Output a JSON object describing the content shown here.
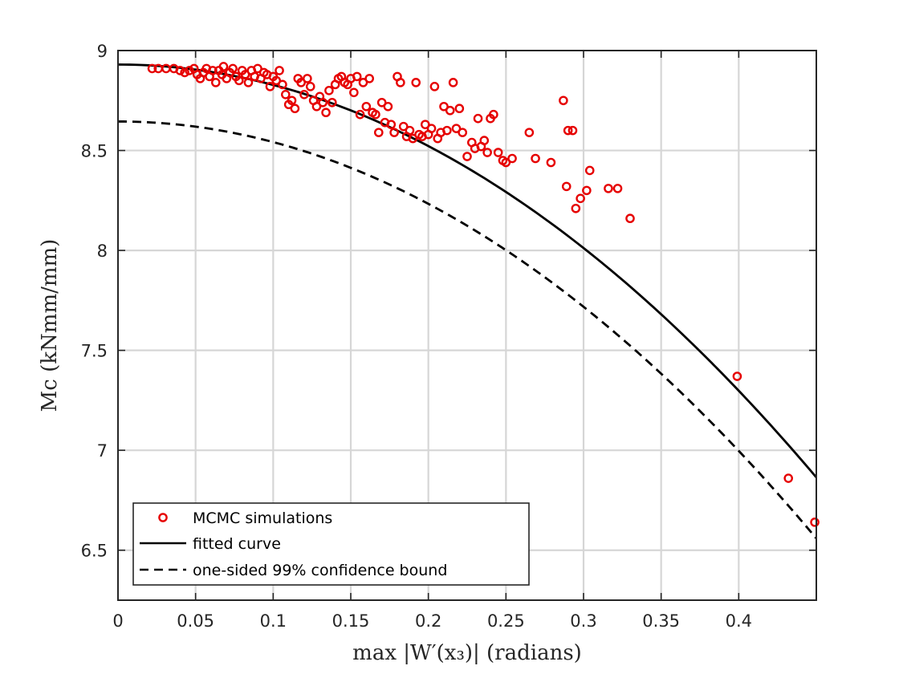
{
  "chart_data": {
    "type": "scatter",
    "title": "",
    "xlabel": "max |W′(x₃)| (radians)",
    "ylabel": "Mc (kNmm/mm)",
    "xlim": [
      0,
      0.45
    ],
    "ylim": [
      6.25,
      9.0
    ],
    "xticks": [
      0,
      0.05,
      0.1,
      0.15,
      0.2,
      0.25,
      0.3,
      0.35,
      0.4
    ],
    "xtick_labels": [
      "0",
      "0.05",
      "0.1",
      "0.15",
      "0.2",
      "0.25",
      "0.3",
      "0.35",
      "0.4"
    ],
    "yticks": [
      6.5,
      7,
      7.5,
      8,
      8.5,
      9
    ],
    "ytick_labels": [
      "6.5",
      "7",
      "7.5",
      "8",
      "8.5",
      "9"
    ],
    "grid": true,
    "legend_position": "bottom-left",
    "series": [
      {
        "name": "MCMC simulations",
        "kind": "scatter",
        "marker": "circle-open",
        "color": "#e60000",
        "points": [
          [
            0.022,
            8.91
          ],
          [
            0.026,
            8.91
          ],
          [
            0.031,
            8.91
          ],
          [
            0.036,
            8.91
          ],
          [
            0.04,
            8.9
          ],
          [
            0.043,
            8.89
          ],
          [
            0.046,
            8.9
          ],
          [
            0.049,
            8.91
          ],
          [
            0.051,
            8.88
          ],
          [
            0.053,
            8.86
          ],
          [
            0.055,
            8.89
          ],
          [
            0.057,
            8.91
          ],
          [
            0.059,
            8.87
          ],
          [
            0.061,
            8.9
          ],
          [
            0.063,
            8.84
          ],
          [
            0.065,
            8.9
          ],
          [
            0.067,
            8.88
          ],
          [
            0.068,
            8.92
          ],
          [
            0.07,
            8.86
          ],
          [
            0.072,
            8.89
          ],
          [
            0.074,
            8.91
          ],
          [
            0.076,
            8.87
          ],
          [
            0.078,
            8.85
          ],
          [
            0.08,
            8.9
          ],
          [
            0.082,
            8.88
          ],
          [
            0.084,
            8.84
          ],
          [
            0.086,
            8.9
          ],
          [
            0.088,
            8.87
          ],
          [
            0.09,
            8.91
          ],
          [
            0.092,
            8.86
          ],
          [
            0.094,
            8.89
          ],
          [
            0.096,
            8.88
          ],
          [
            0.098,
            8.82
          ],
          [
            0.1,
            8.87
          ],
          [
            0.102,
            8.85
          ],
          [
            0.104,
            8.9
          ],
          [
            0.106,
            8.83
          ],
          [
            0.108,
            8.78
          ],
          [
            0.11,
            8.73
          ],
          [
            0.112,
            8.75
          ],
          [
            0.114,
            8.71
          ],
          [
            0.116,
            8.86
          ],
          [
            0.118,
            8.84
          ],
          [
            0.12,
            8.78
          ],
          [
            0.122,
            8.86
          ],
          [
            0.124,
            8.82
          ],
          [
            0.126,
            8.75
          ],
          [
            0.128,
            8.72
          ],
          [
            0.13,
            8.77
          ],
          [
            0.132,
            8.74
          ],
          [
            0.134,
            8.69
          ],
          [
            0.136,
            8.8
          ],
          [
            0.138,
            8.74
          ],
          [
            0.14,
            8.83
          ],
          [
            0.142,
            8.86
          ],
          [
            0.144,
            8.87
          ],
          [
            0.146,
            8.84
          ],
          [
            0.148,
            8.83
          ],
          [
            0.15,
            8.86
          ],
          [
            0.152,
            8.79
          ],
          [
            0.154,
            8.87
          ],
          [
            0.156,
            8.68
          ],
          [
            0.158,
            8.84
          ],
          [
            0.16,
            8.72
          ],
          [
            0.162,
            8.86
          ],
          [
            0.164,
            8.69
          ],
          [
            0.166,
            8.68
          ],
          [
            0.168,
            8.59
          ],
          [
            0.17,
            8.74
          ],
          [
            0.172,
            8.64
          ],
          [
            0.174,
            8.72
          ],
          [
            0.176,
            8.63
          ],
          [
            0.178,
            8.59
          ],
          [
            0.18,
            8.87
          ],
          [
            0.182,
            8.84
          ],
          [
            0.184,
            8.62
          ],
          [
            0.186,
            8.57
          ],
          [
            0.188,
            8.6
          ],
          [
            0.19,
            8.56
          ],
          [
            0.192,
            8.84
          ],
          [
            0.194,
            8.58
          ],
          [
            0.196,
            8.57
          ],
          [
            0.198,
            8.63
          ],
          [
            0.2,
            8.58
          ],
          [
            0.202,
            8.61
          ],
          [
            0.204,
            8.82
          ],
          [
            0.206,
            8.56
          ],
          [
            0.208,
            8.59
          ],
          [
            0.21,
            8.72
          ],
          [
            0.212,
            8.6
          ],
          [
            0.214,
            8.7
          ],
          [
            0.216,
            8.84
          ],
          [
            0.218,
            8.61
          ],
          [
            0.22,
            8.71
          ],
          [
            0.222,
            8.59
          ],
          [
            0.225,
            8.47
          ],
          [
            0.228,
            8.54
          ],
          [
            0.23,
            8.51
          ],
          [
            0.232,
            8.66
          ],
          [
            0.234,
            8.52
          ],
          [
            0.236,
            8.55
          ],
          [
            0.238,
            8.49
          ],
          [
            0.24,
            8.66
          ],
          [
            0.242,
            8.68
          ],
          [
            0.245,
            8.49
          ],
          [
            0.248,
            8.45
          ],
          [
            0.25,
            8.44
          ],
          [
            0.254,
            8.46
          ],
          [
            0.265,
            8.59
          ],
          [
            0.269,
            8.46
          ],
          [
            0.279,
            8.44
          ],
          [
            0.287,
            8.75
          ],
          [
            0.289,
            8.32
          ],
          [
            0.29,
            8.6
          ],
          [
            0.293,
            8.6
          ],
          [
            0.295,
            8.21
          ],
          [
            0.298,
            8.26
          ],
          [
            0.302,
            8.3
          ],
          [
            0.304,
            8.4
          ],
          [
            0.316,
            8.31
          ],
          [
            0.322,
            8.31
          ],
          [
            0.33,
            8.16
          ],
          [
            0.399,
            7.37
          ],
          [
            0.432,
            6.86
          ],
          [
            0.449,
            6.64
          ]
        ]
      },
      {
        "name": "fitted curve",
        "kind": "line",
        "style": "solid",
        "color": "#000000",
        "equation": "y = 8.93 - 10.2 * x^2",
        "x": [
          0.0,
          0.025,
          0.05,
          0.075,
          0.1,
          0.125,
          0.15,
          0.175,
          0.2,
          0.225,
          0.25,
          0.275,
          0.3,
          0.325,
          0.35,
          0.375,
          0.4,
          0.425,
          0.45
        ],
        "y": [
          8.93,
          8.924,
          8.905,
          8.873,
          8.828,
          8.771,
          8.701,
          8.618,
          8.522,
          8.414,
          8.293,
          8.159,
          8.012,
          7.853,
          7.681,
          7.496,
          7.298,
          7.088,
          6.865
        ]
      },
      {
        "name": "one-sided 99% confidence bound",
        "kind": "line",
        "style": "dashed",
        "color": "#000000",
        "equation": "y = 8.645 - 10.3 * x^2",
        "x": [
          0.0,
          0.025,
          0.05,
          0.075,
          0.1,
          0.125,
          0.15,
          0.175,
          0.2,
          0.225,
          0.25,
          0.275,
          0.3,
          0.325,
          0.35,
          0.375,
          0.4,
          0.425,
          0.45
        ],
        "y": [
          8.645,
          8.639,
          8.619,
          8.587,
          8.542,
          8.484,
          8.413,
          8.33,
          8.233,
          8.124,
          8.001,
          7.866,
          7.718,
          7.557,
          7.383,
          7.197,
          6.997,
          6.785,
          6.559
        ]
      }
    ]
  },
  "legend": {
    "items": [
      "MCMC simulations",
      "fitted curve",
      "one-sided 99% confidence bound"
    ]
  }
}
